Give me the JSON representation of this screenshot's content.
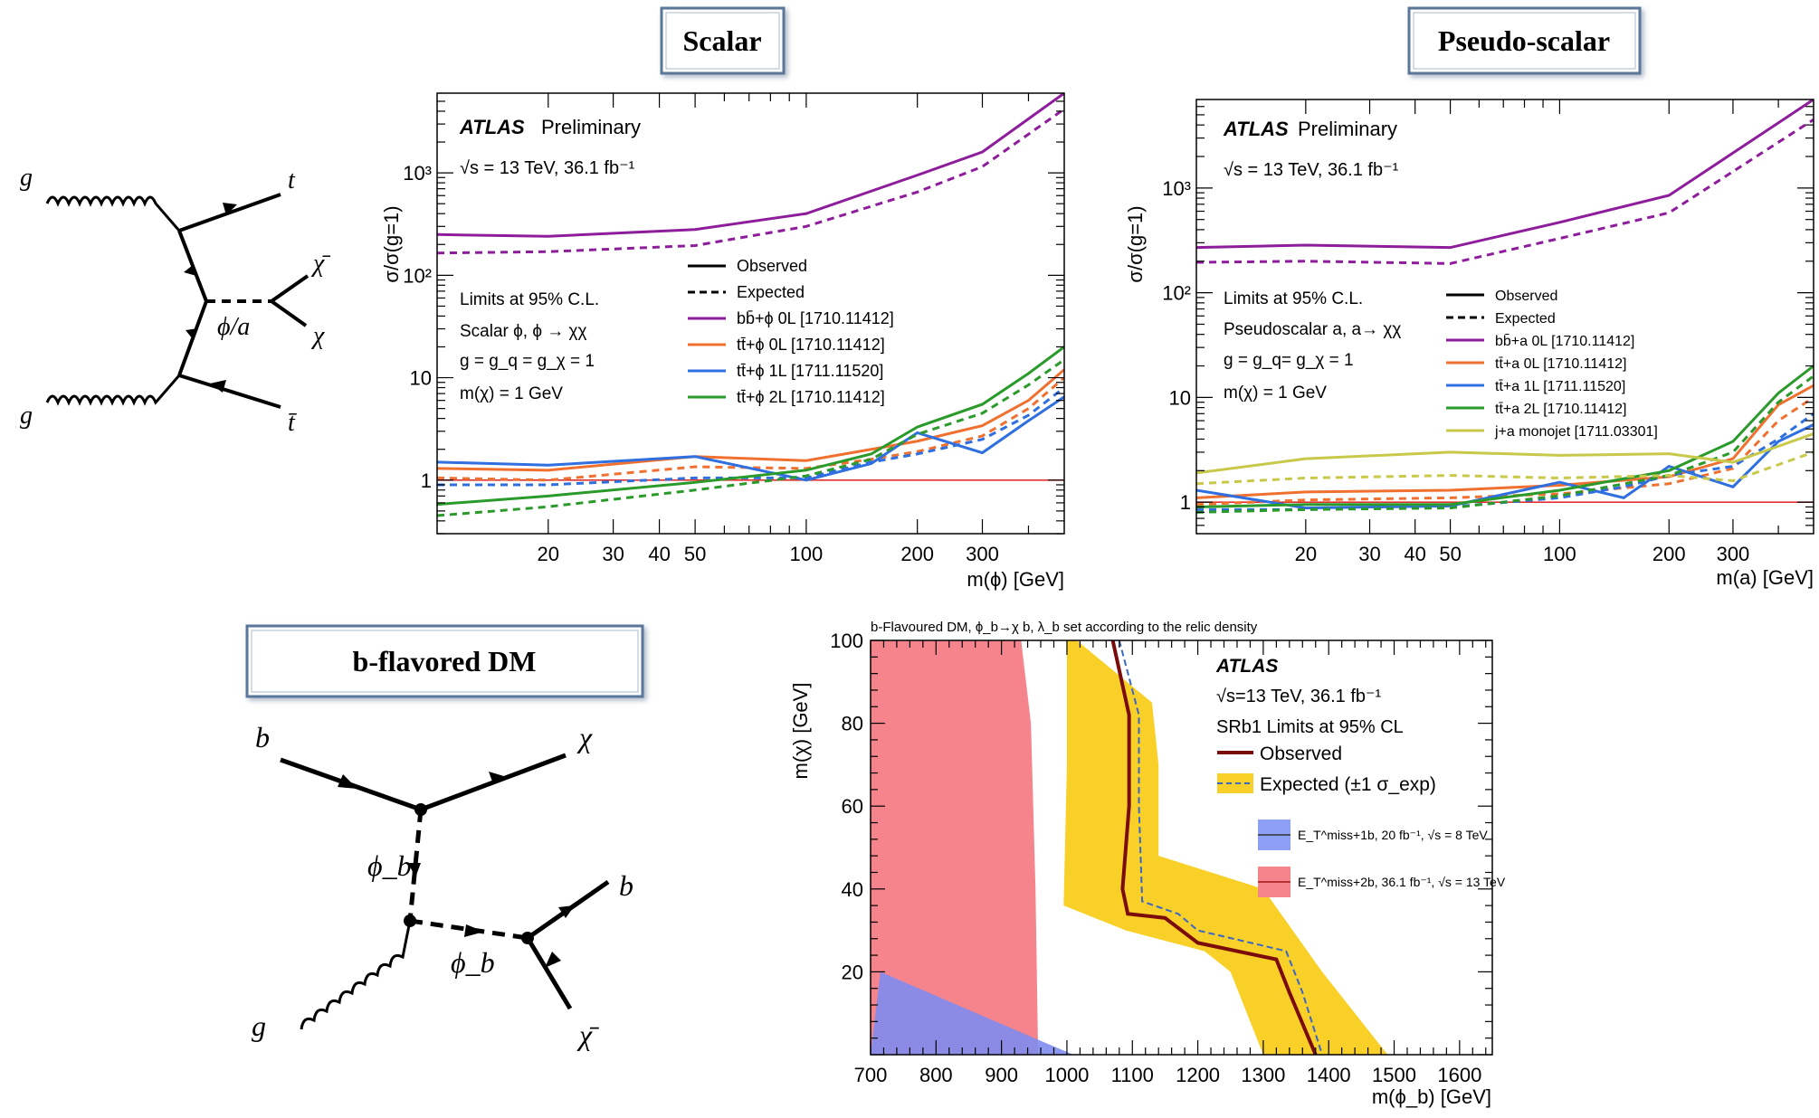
{
  "panels": {
    "scalar_title": "Scalar",
    "pseudo_title": "Pseudo-scalar",
    "bflavored_title": "b-flavored DM"
  },
  "diagram_top": {
    "labels": [
      "g",
      "g",
      "t",
      "t̄",
      "χ̄",
      "χ",
      "ϕ/a"
    ]
  },
  "diagram_bottom": {
    "labels": [
      "b",
      "χ",
      "ϕ_b",
      "ϕ_b",
      "b",
      "g",
      "χ̄"
    ]
  },
  "chart_data": [
    {
      "id": "scalar",
      "type": "line",
      "atlas": "ATLAS",
      "prelim": "Preliminary",
      "energy": "√s = 13 TeV, 36.1 fb⁻¹",
      "info": [
        "Limits at 95% C.L.",
        "Scalar ϕ, ϕ → χχ",
        "g = g_q = g_χ = 1",
        "m(χ) = 1 GeV"
      ],
      "xlabel": "m(ϕ) [GeV]",
      "ylabel": "σ/σ(g=1)",
      "xscale": "log",
      "yscale": "log",
      "xlim": [
        10,
        500
      ],
      "ylim": [
        0.3,
        6000
      ],
      "xticks": [
        20,
        30,
        40,
        50,
        100,
        200,
        300
      ],
      "yticks": [
        {
          "v": 1,
          "label": "1"
        },
        {
          "v": 10,
          "label": "10"
        },
        {
          "v": 100,
          "label": "10²"
        },
        {
          "v": 1000,
          "label": "10³"
        }
      ],
      "legend_style": [
        {
          "label": "Observed",
          "dash": false
        },
        {
          "label": "Expected",
          "dash": true
        }
      ],
      "reference_line": {
        "y": 1,
        "color": "#e03030"
      },
      "series": [
        {
          "name": "bb̄+ϕ 0L [1710.11412]",
          "color": "#8e1d9c",
          "x": [
            10,
            20,
            50,
            100,
            200,
            300,
            500
          ],
          "obs": [
            250,
            240,
            280,
            400,
            950,
            1600,
            6000
          ],
          "exp": [
            165,
            170,
            195,
            300,
            650,
            1150,
            4200
          ]
        },
        {
          "name": "tt̄+ϕ 0L [1710.11412]",
          "color": "#f07030",
          "x": [
            10,
            20,
            50,
            100,
            150,
            200,
            300,
            400,
            500
          ],
          "obs": [
            1.3,
            1.25,
            1.7,
            1.55,
            2.0,
            2.4,
            3.4,
            6.0,
            12.0
          ],
          "exp": [
            1.05,
            1.0,
            1.35,
            1.3,
            1.6,
            1.9,
            2.7,
            5.0,
            10.0
          ]
        },
        {
          "name": "tt̄+ϕ 1L [1711.11520]",
          "color": "#2f6fe0",
          "x": [
            10,
            20,
            50,
            100,
            150,
            200,
            300,
            400,
            500
          ],
          "obs": [
            1.5,
            1.4,
            1.7,
            1.0,
            1.45,
            2.9,
            1.85,
            3.8,
            6.5
          ],
          "exp": [
            0.9,
            0.9,
            1.05,
            1.05,
            1.5,
            1.8,
            2.5,
            4.3,
            8.0
          ]
        },
        {
          "name": "tt̄+ϕ 2L [1710.11412]",
          "color": "#2a9a2a",
          "x": [
            10,
            20,
            50,
            100,
            150,
            200,
            300,
            400,
            500
          ],
          "obs": [
            0.58,
            0.7,
            0.95,
            1.25,
            1.8,
            3.3,
            5.5,
            11.0,
            20.0
          ],
          "exp": [
            0.45,
            0.55,
            0.8,
            1.1,
            1.6,
            2.8,
            4.5,
            8.5,
            15.0
          ]
        }
      ]
    },
    {
      "id": "pseudo",
      "type": "line",
      "atlas": "ATLAS",
      "prelim": "Preliminary",
      "energy": "√s = 13 TeV, 36.1 fb⁻¹",
      "info": [
        "Limits at 95% C.L.",
        "Pseudoscalar a, a→ χχ",
        "g = g_q= g_χ = 1",
        "m(χ) = 1 GeV"
      ],
      "xlabel": "m(a) [GeV]",
      "ylabel": "σ/σ(g=1)",
      "xscale": "log",
      "yscale": "log",
      "xlim": [
        10,
        500
      ],
      "ylim": [
        0.5,
        7000
      ],
      "xticks": [
        20,
        30,
        40,
        50,
        100,
        200,
        300
      ],
      "yticks": [
        {
          "v": 1,
          "label": "1"
        },
        {
          "v": 10,
          "label": "10"
        },
        {
          "v": 100,
          "label": "10²"
        },
        {
          "v": 1000,
          "label": "10³"
        }
      ],
      "legend_style": [
        {
          "label": "Observed",
          "dash": false
        },
        {
          "label": "Expected",
          "dash": true
        }
      ],
      "reference_line": {
        "y": 1,
        "color": "#e03030"
      },
      "series": [
        {
          "name": "bb̄+a 0L [1710.11412]",
          "color": "#8e1d9c",
          "x": [
            10,
            20,
            50,
            100,
            200,
            500
          ],
          "obs": [
            270,
            285,
            270,
            470,
            850,
            7000
          ],
          "exp": [
            195,
            200,
            190,
            330,
            580,
            4500
          ]
        },
        {
          "name": "tt̄+a 0L [1710.11412]",
          "color": "#f07030",
          "x": [
            10,
            20,
            50,
            100,
            200,
            300,
            400,
            500
          ],
          "obs": [
            1.1,
            1.25,
            1.3,
            1.45,
            1.75,
            2.6,
            8.5,
            13.0
          ],
          "exp": [
            0.95,
            1.05,
            1.1,
            1.2,
            1.5,
            2.1,
            6.0,
            10.0
          ]
        },
        {
          "name": "tt̄+a 1L [1711.11520]",
          "color": "#2f6fe0",
          "x": [
            10,
            20,
            50,
            100,
            150,
            200,
            300,
            400,
            500
          ],
          "obs": [
            1.3,
            0.88,
            0.92,
            1.55,
            1.1,
            2.2,
            1.4,
            3.8,
            5.5
          ],
          "exp": [
            0.85,
            0.85,
            0.9,
            1.1,
            1.4,
            1.8,
            2.2,
            4.0,
            7.0
          ]
        },
        {
          "name": "tt̄+a 2L [1710.11412]",
          "color": "#2a9a2a",
          "x": [
            10,
            20,
            50,
            100,
            200,
            300,
            400,
            500
          ],
          "obs": [
            0.9,
            0.95,
            0.95,
            1.3,
            2.0,
            3.8,
            11.0,
            20.0
          ],
          "exp": [
            0.8,
            0.85,
            0.88,
            1.15,
            1.8,
            3.0,
            9.0,
            16.0
          ]
        },
        {
          "name": "j+a monojet [1711.03301]",
          "color": "#c8c84a",
          "x": [
            10,
            20,
            50,
            100,
            200,
            300,
            500
          ],
          "obs": [
            1.9,
            2.6,
            3.0,
            2.8,
            2.9,
            2.4,
            4.5
          ],
          "exp": [
            1.5,
            1.7,
            1.8,
            1.7,
            1.8,
            1.6,
            3.0
          ]
        }
      ]
    },
    {
      "id": "bflav",
      "type": "area",
      "caption": "b-Flavoured DM, ϕ_b→χ b, λ_b set according to the relic density",
      "atlas": "ATLAS",
      "energy": "√s=13 TeV, 36.1 fb⁻¹",
      "info": "SRb1  Limits at 95% CL",
      "xlabel": "m(ϕ_b) [GeV]",
      "ylabel": "m(χ) [GeV]",
      "xlim": [
        700,
        1650
      ],
      "ylim": [
        0,
        100
      ],
      "xticks": [
        700,
        800,
        900,
        1000,
        1100,
        1200,
        1300,
        1400,
        1500,
        1600
      ],
      "yticks": [
        20,
        40,
        60,
        80,
        100
      ],
      "legend": [
        {
          "label": "Observed",
          "kind": "line",
          "color": "#7a0c0c"
        },
        {
          "label": "Expected (±1 σ_exp)",
          "kind": "band",
          "color": "#f8d028"
        },
        {
          "label": "E_T^miss+1b, 20 fb⁻¹, √s = 8 TeV",
          "kind": "box",
          "color": "#8da0f5"
        },
        {
          "label": "E_T^miss+2b, 36.1 fb⁻¹, √s = 13 TeV",
          "kind": "box",
          "color": "#f5848c"
        }
      ],
      "red_region": {
        "x": [
          700,
          930,
          945,
          952,
          956,
          700
        ],
        "y": [
          100,
          100,
          80,
          40,
          0,
          0
        ]
      },
      "blue_region": {
        "x": [
          700,
          715,
          950,
          1010,
          700
        ],
        "y": [
          0,
          20,
          4,
          0,
          0
        ]
      },
      "band_upper": {
        "x": [
          1015,
          1130,
          1140,
          1140,
          1300,
          1390,
          1490
        ],
        "y": [
          100,
          85,
          70,
          48,
          40,
          20,
          0
        ]
      },
      "band_lower": {
        "x": [
          1300,
          1250,
          1210,
          1090,
          995,
          1000,
          1000
        ],
        "y": [
          0,
          20,
          25,
          30,
          36,
          70,
          100
        ]
      },
      "observed": {
        "x": [
          1070,
          1095,
          1095,
          1085,
          1093,
          1150,
          1200,
          1320,
          1340,
          1380
        ],
        "y": [
          100,
          82,
          60,
          40,
          34,
          33,
          27,
          23,
          15,
          0
        ]
      },
      "expected": {
        "x": [
          1080,
          1110,
          1110,
          1115,
          1170,
          1200,
          1335,
          1360,
          1390
        ],
        "y": [
          100,
          82,
          60,
          37,
          34,
          30,
          25,
          15,
          0
        ]
      }
    }
  ],
  "style": {
    "axis_color": "#000000",
    "title_border": "#5a7799",
    "title_bg": "#ffffff"
  }
}
